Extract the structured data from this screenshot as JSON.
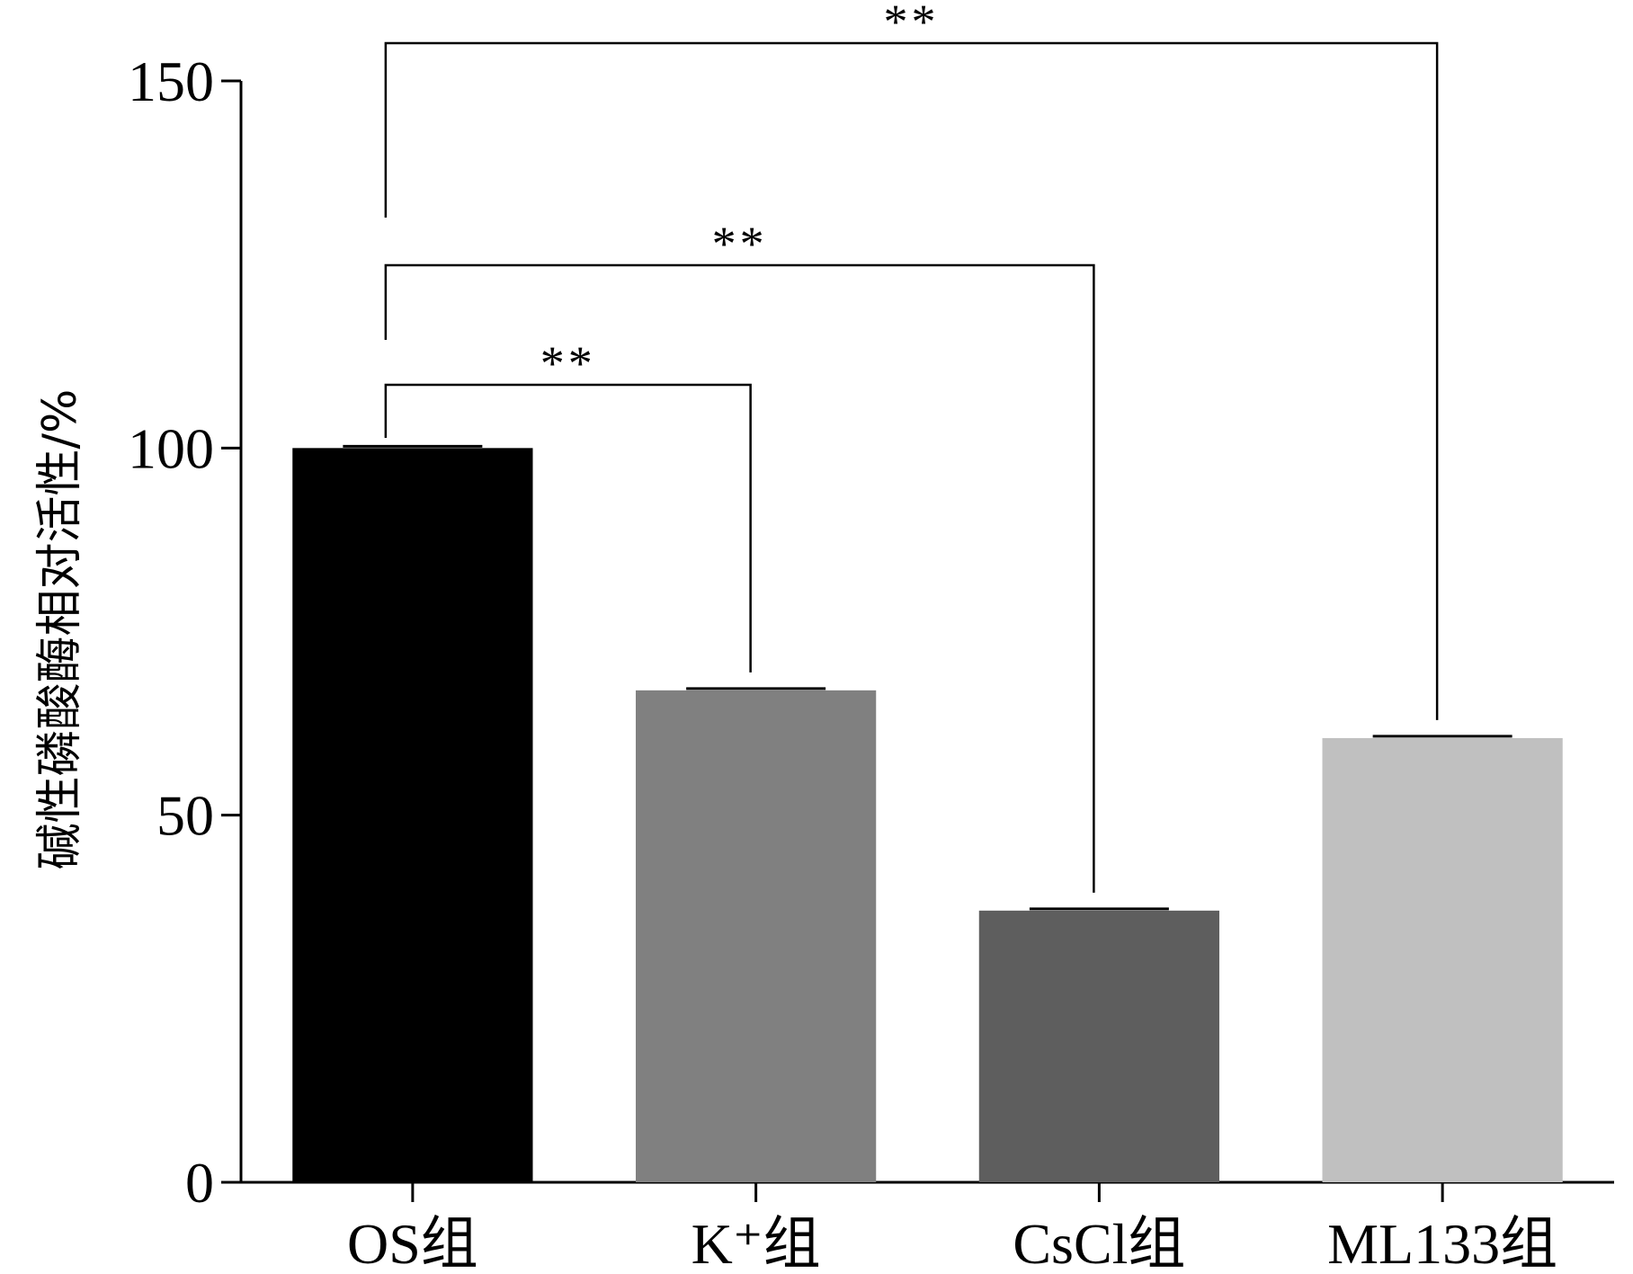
{
  "chart_data": {
    "type": "bar",
    "title": "",
    "xlabel": "",
    "ylabel": "碱性磷酸酶相对活性/%",
    "ylim": [
      0,
      150
    ],
    "yticks": [
      0,
      50,
      100,
      150
    ],
    "categories": [
      "OS组",
      "K⁺组",
      "CsCl组",
      "ML133组"
    ],
    "values": [
      100,
      67,
      37,
      60.5
    ],
    "errors": [
      0,
      0,
      0,
      0
    ],
    "colors": [
      "#000000",
      "#808080",
      "#5e5e5e",
      "#c0c0c0"
    ],
    "grid": false,
    "legend": "none",
    "significance": [
      {
        "from": 0,
        "to": 3,
        "label": "**"
      },
      {
        "from": 0,
        "to": 2,
        "label": "**"
      },
      {
        "from": 0,
        "to": 1,
        "label": "**"
      }
    ]
  }
}
